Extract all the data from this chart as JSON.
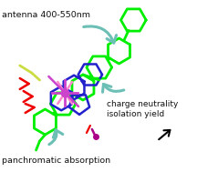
{
  "background_color": "#ffffff",
  "green": "#00EE00",
  "blue": "#2222CC",
  "red": "#EE0000",
  "magenta": "#CC44CC",
  "pink": "#FF88CC",
  "teal": "#6BBFB5",
  "yellow_green": "#CCDD44",
  "dark_magenta": "#AA0088",
  "text_color": "#111111",
  "text_antenna": "antenna 400-550nm",
  "text_charge": "charge neutrality\nisolation yield",
  "text_panchro": "panchromatic absorption",
  "lw_green": 2.0,
  "lw_blue": 1.8,
  "lw_red": 1.8,
  "lw_arrow": 2.2
}
